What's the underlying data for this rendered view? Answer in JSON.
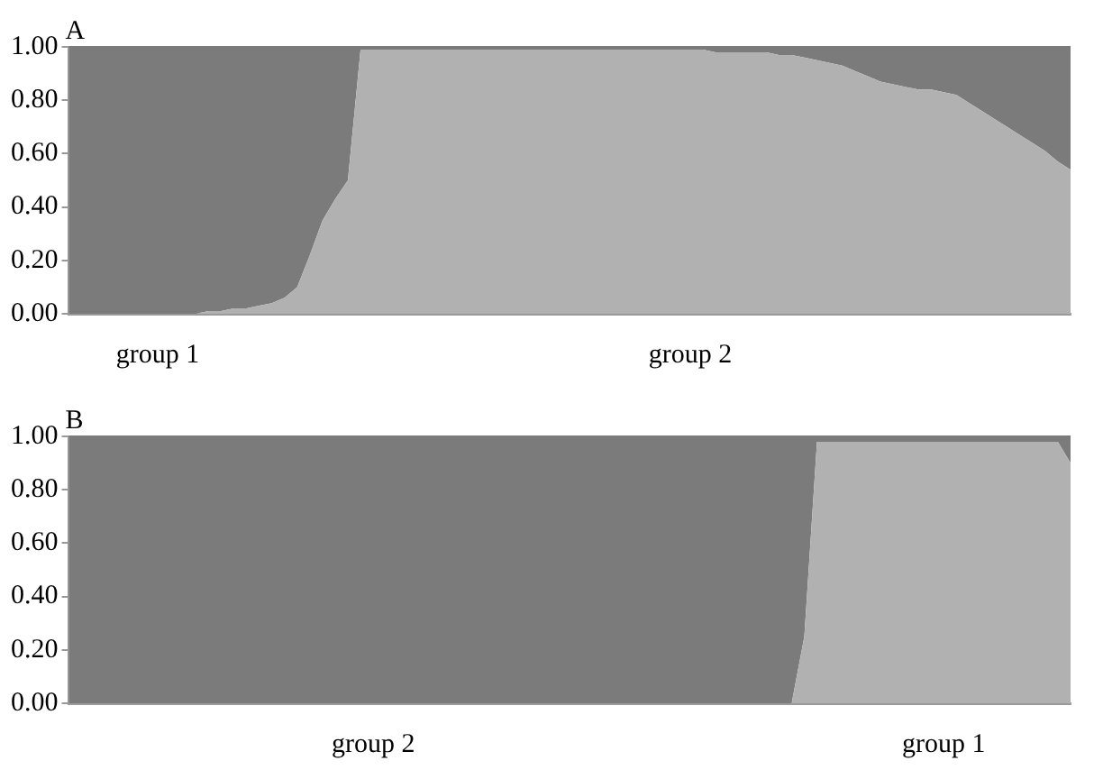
{
  "chart_data": [
    {
      "type": "area",
      "title": "A",
      "stacked": true,
      "categories": [
        null,
        null,
        null,
        null,
        null,
        null,
        null,
        "group 1",
        null,
        null,
        null,
        null,
        null,
        null,
        null,
        null,
        null,
        null,
        null,
        null,
        null,
        null,
        null,
        null,
        null,
        null,
        null,
        null,
        null,
        null,
        null,
        null,
        null,
        null,
        null,
        null,
        null,
        null,
        null,
        null,
        null,
        null,
        null,
        null,
        null,
        null,
        null,
        null,
        null,
        "group 2",
        null,
        null,
        null,
        null,
        null,
        null,
        null,
        null,
        null,
        null,
        null,
        null,
        null,
        null,
        null,
        null,
        null,
        null,
        null,
        null,
        null,
        null,
        null,
        null,
        null,
        null,
        null,
        null,
        null,
        null
      ],
      "series": [
        {
          "color": "#b1b1b1",
          "values": [
            0,
            0,
            0,
            0,
            0,
            0,
            0,
            0,
            0,
            0,
            0,
            0.01,
            0.01,
            0.02,
            0.02,
            0.03,
            0.04,
            0.06,
            0.1,
            0.22,
            0.35,
            0.43,
            0.5,
            0.99,
            0.99,
            0.99,
            0.99,
            0.99,
            0.99,
            0.99,
            0.99,
            0.99,
            0.99,
            0.99,
            0.99,
            0.99,
            0.99,
            0.99,
            0.99,
            0.99,
            0.99,
            0.99,
            0.99,
            0.99,
            0.99,
            0.99,
            0.99,
            0.99,
            0.99,
            0.99,
            0.99,
            0.98,
            0.98,
            0.98,
            0.98,
            0.98,
            0.97,
            0.97,
            0.96,
            0.95,
            0.94,
            0.93,
            0.91,
            0.89,
            0.87,
            0.86,
            0.85,
            0.84,
            0.84,
            0.83,
            0.82,
            0.79,
            0.76,
            0.73,
            0.7,
            0.67,
            0.64,
            0.61,
            0.57,
            0.54
          ]
        },
        {
          "color": "#7b7b7b",
          "values": [
            1,
            1,
            1,
            1,
            1,
            1,
            1,
            1,
            1,
            1,
            1,
            0.99,
            0.99,
            0.98,
            0.98,
            0.97,
            0.96,
            0.94,
            0.9,
            0.78,
            0.65,
            0.57,
            0.5,
            0.01,
            0.01,
            0.01,
            0.01,
            0.01,
            0.01,
            0.01,
            0.01,
            0.01,
            0.01,
            0.01,
            0.01,
            0.01,
            0.01,
            0.01,
            0.01,
            0.01,
            0.01,
            0.01,
            0.01,
            0.01,
            0.01,
            0.01,
            0.01,
            0.01,
            0.01,
            0.01,
            0.01,
            0.02,
            0.02,
            0.02,
            0.02,
            0.02,
            0.03,
            0.03,
            0.04,
            0.05,
            0.06,
            0.07,
            0.09,
            0.11,
            0.13,
            0.14,
            0.15,
            0.16,
            0.16,
            0.17,
            0.18,
            0.21,
            0.24,
            0.27,
            0.3,
            0.33,
            0.36,
            0.39,
            0.43,
            0.46
          ]
        }
      ],
      "ylim": [
        0,
        1
      ],
      "yticks": [
        {
          "value": 0,
          "label": "0.00"
        },
        {
          "value": 0.2,
          "label": "0.20"
        },
        {
          "value": 0.4,
          "label": "0.40"
        },
        {
          "value": 0.6,
          "label": "0.60"
        },
        {
          "value": 0.8,
          "label": "0.80"
        },
        {
          "value": 1,
          "label": "1.00"
        }
      ]
    },
    {
      "type": "area",
      "title": "B",
      "stacked": true,
      "categories": [
        null,
        null,
        null,
        null,
        null,
        null,
        null,
        null,
        null,
        null,
        null,
        null,
        null,
        null,
        null,
        null,
        null,
        null,
        null,
        null,
        null,
        null,
        null,
        null,
        "group 2",
        null,
        null,
        null,
        null,
        null,
        null,
        null,
        null,
        null,
        null,
        null,
        null,
        null,
        null,
        null,
        null,
        null,
        null,
        null,
        null,
        null,
        null,
        null,
        null,
        null,
        null,
        null,
        null,
        null,
        null,
        null,
        null,
        null,
        null,
        null,
        null,
        null,
        null,
        null,
        null,
        null,
        null,
        null,
        null,
        "group 1",
        null,
        null,
        null,
        null,
        null,
        null,
        null,
        null,
        null,
        null
      ],
      "series": [
        {
          "color": "#b1b1b1",
          "values": [
            0,
            0,
            0,
            0,
            0,
            0,
            0,
            0,
            0,
            0,
            0,
            0,
            0,
            0,
            0,
            0,
            0,
            0,
            0,
            0,
            0,
            0,
            0,
            0,
            0,
            0,
            0,
            0,
            0,
            0,
            0,
            0,
            0,
            0,
            0,
            0,
            0,
            0,
            0,
            0,
            0,
            0,
            0,
            0,
            0,
            0,
            0,
            0,
            0,
            0,
            0,
            0,
            0,
            0,
            0,
            0,
            0,
            0,
            0.25,
            0.98,
            0.98,
            0.98,
            0.98,
            0.98,
            0.98,
            0.98,
            0.98,
            0.98,
            0.98,
            0.98,
            0.98,
            0.98,
            0.98,
            0.98,
            0.98,
            0.98,
            0.98,
            0.98,
            0.98,
            0.9
          ]
        },
        {
          "color": "#7b7b7b",
          "values": [
            1,
            1,
            1,
            1,
            1,
            1,
            1,
            1,
            1,
            1,
            1,
            1,
            1,
            1,
            1,
            1,
            1,
            1,
            1,
            1,
            1,
            1,
            1,
            1,
            1,
            1,
            1,
            1,
            1,
            1,
            1,
            1,
            1,
            1,
            1,
            1,
            1,
            1,
            1,
            1,
            1,
            1,
            1,
            1,
            1,
            1,
            1,
            1,
            1,
            1,
            1,
            1,
            1,
            1,
            1,
            1,
            1,
            1,
            0.75,
            0.02,
            0.02,
            0.02,
            0.02,
            0.02,
            0.02,
            0.02,
            0.02,
            0.02,
            0.02,
            0.02,
            0.02,
            0.02,
            0.02,
            0.02,
            0.02,
            0.02,
            0.02,
            0.02,
            0.02,
            0.1
          ]
        }
      ],
      "ylim": [
        0,
        1
      ],
      "yticks": [
        {
          "value": 0,
          "label": "0.00"
        },
        {
          "value": 0.2,
          "label": "0.20"
        },
        {
          "value": 0.4,
          "label": "0.40"
        },
        {
          "value": 0.6,
          "label": "0.60"
        },
        {
          "value": 0.8,
          "label": "0.80"
        },
        {
          "value": 1,
          "label": "1.00"
        }
      ]
    }
  ]
}
